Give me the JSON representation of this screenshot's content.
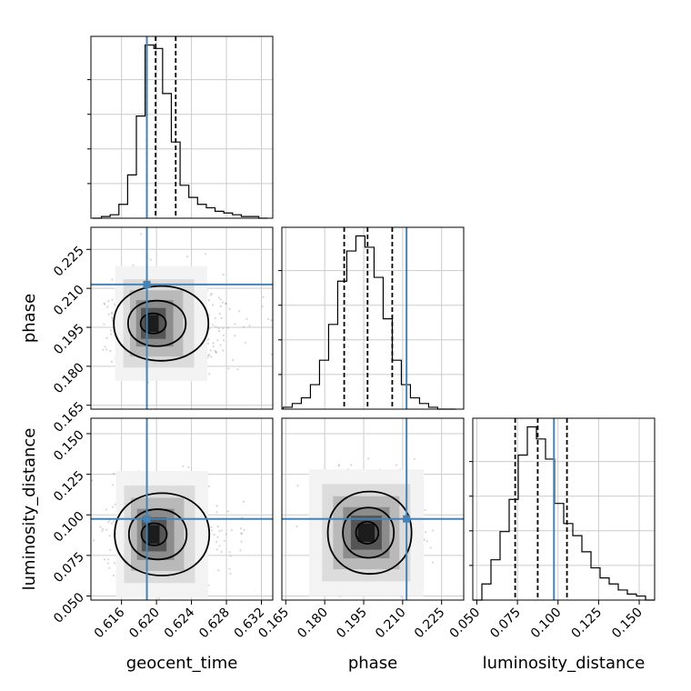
{
  "chart_data": {
    "type": "corner",
    "parameters": [
      "geocent_time",
      "phase",
      "luminosity_distance"
    ],
    "truths": [
      0.6189,
      0.2115,
      0.0975
    ],
    "quantiles": [
      [
        0.6189,
        0.6199,
        0.6222
      ],
      [
        0.1875,
        0.1965,
        0.206
      ],
      [
        0.0736,
        0.0875,
        0.1055
      ]
    ],
    "axes": {
      "geocent_time": {
        "range": [
          0.6125,
          0.6333
        ],
        "ticks": [
          0.616,
          0.62,
          0.624,
          0.628,
          0.632
        ],
        "tick_labels": [
          "0.616",
          "0.620",
          "0.624",
          "0.628",
          "0.632"
        ]
      },
      "phase": {
        "range": [
          0.1635,
          0.2335
        ],
        "ticks": [
          0.165,
          0.18,
          0.195,
          0.21,
          0.225
        ],
        "tick_labels": [
          "0.165",
          "0.180",
          "0.195",
          "0.210",
          "0.225"
        ]
      },
      "luminosity_distance": {
        "range": [
          0.0475,
          0.1595
        ],
        "ticks": [
          0.05,
          0.075,
          0.1,
          0.125,
          0.15
        ],
        "tick_labels": [
          "0.050",
          "0.075",
          "0.100",
          "0.125",
          "0.150"
        ]
      }
    },
    "histograms": [
      {
        "parameter": "geocent_time",
        "bin_edges": [
          0.6127,
          0.6137,
          0.6147,
          0.6157,
          0.6167,
          0.6177,
          0.6187,
          0.6197,
          0.6207,
          0.6217,
          0.6227,
          0.6237,
          0.6247,
          0.6257,
          0.6267,
          0.6277,
          0.6287,
          0.6297,
          0.6307,
          0.6317,
          0.6327
        ],
        "counts": [
          0,
          1,
          2,
          8,
          25,
          59,
          100,
          98,
          72,
          44,
          19,
          12,
          8,
          6,
          4,
          3,
          2,
          1,
          1,
          0
        ]
      },
      {
        "parameter": "phase",
        "bin_edges": [
          0.164,
          0.1675,
          0.171,
          0.1745,
          0.178,
          0.1815,
          0.185,
          0.1885,
          0.192,
          0.1955,
          0.199,
          0.2025,
          0.206,
          0.2095,
          0.213,
          0.2165,
          0.22,
          0.2235,
          0.227,
          0.2305
        ],
        "counts": [
          1,
          3,
          6,
          13,
          26,
          45,
          68,
          84,
          92,
          86,
          70,
          48,
          26,
          13,
          6,
          3,
          1,
          0,
          0
        ]
      },
      {
        "parameter": "luminosity_distance",
        "bin_edges": [
          0.0475,
          0.0531,
          0.0587,
          0.0643,
          0.0699,
          0.0755,
          0.0811,
          0.0867,
          0.0923,
          0.0979,
          0.1035,
          0.1091,
          0.1147,
          0.1203,
          0.1259,
          0.1315,
          0.1371,
          0.1427,
          0.1483,
          0.1539,
          0.1595
        ],
        "counts": [
          0,
          8,
          20,
          34,
          50,
          72,
          86,
          80,
          70,
          48,
          38,
          32,
          24,
          16,
          11,
          8,
          5,
          3,
          2,
          0
        ]
      }
    ],
    "pairs": [
      {
        "x": "geocent_time",
        "y": "phase",
        "center": [
          0.6193,
          0.1965
        ],
        "spread": [
          0.002,
          0.0085
        ],
        "contour_levels": 3
      },
      {
        "x": "geocent_time",
        "y": "luminosity_distance",
        "center": [
          0.6194,
          0.088
        ],
        "spread": [
          0.002,
          0.015
        ],
        "contour_levels": 3
      },
      {
        "x": "phase",
        "y": "luminosity_distance",
        "center": [
          0.196,
          0.089
        ],
        "spread": [
          0.0085,
          0.015
        ],
        "contour_levels": 3
      }
    ],
    "grid": true,
    "colors": {
      "truth": "#4682b4",
      "hist": "#000000",
      "grid": "#cccccc",
      "scatter": "#8a8a8a"
    }
  }
}
